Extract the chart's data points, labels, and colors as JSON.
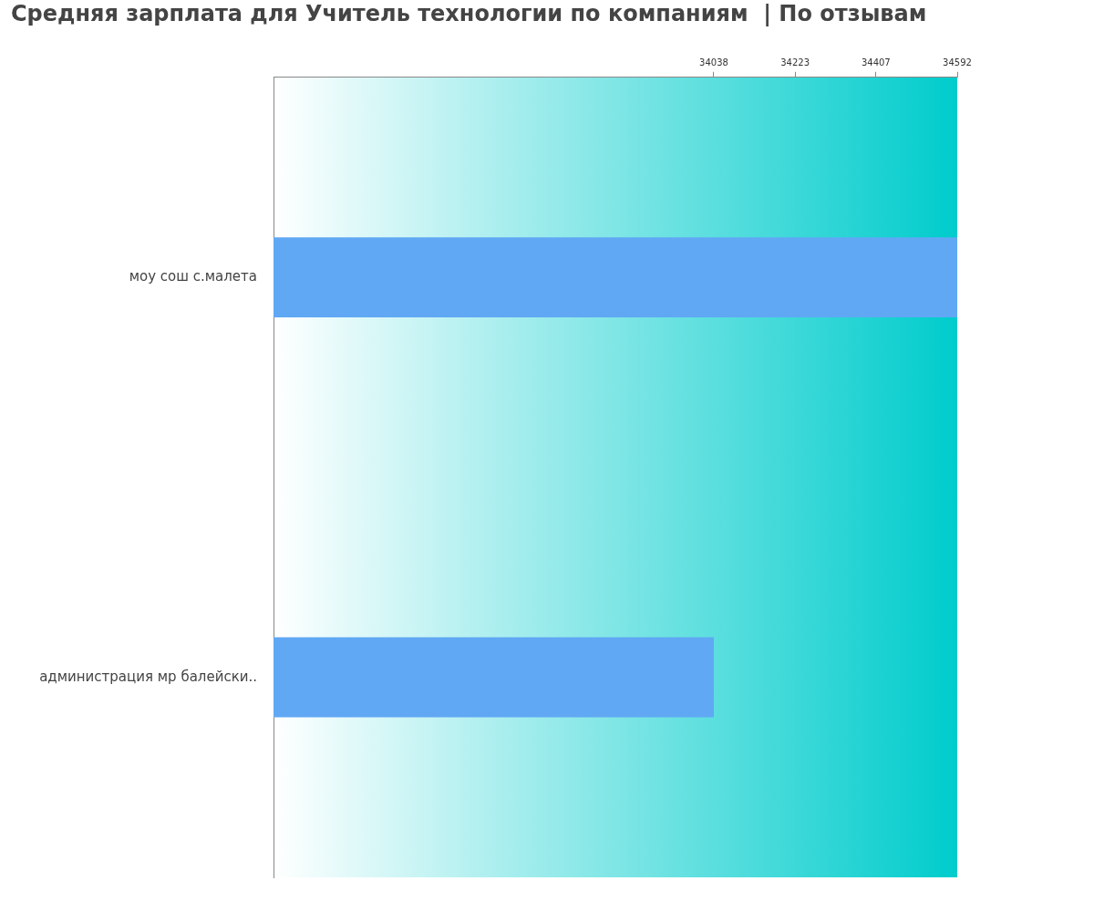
{
  "chart_data": {
    "type": "bar",
    "orientation": "horizontal",
    "title": "Средняя зарплата для Учитель технологии по компаниям  | По отзывам",
    "categories": [
      "моу сош с.малета",
      "администрация мр балейски.."
    ],
    "values": [
      34592,
      34038
    ],
    "color": "#60a8f4",
    "xlim": [
      33036,
      34592
    ],
    "xticks": [
      34038,
      34223,
      34407,
      34592
    ],
    "grid": false,
    "legend": false
  }
}
